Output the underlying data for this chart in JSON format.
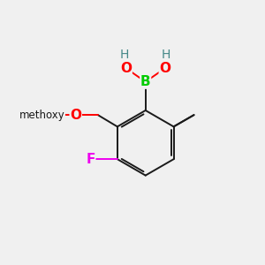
{
  "bg_color": "#f0f0f0",
  "bond_color": "#1a1a1a",
  "bond_width": 1.4,
  "atom_colors": {
    "B": "#00cc00",
    "O": "#ff0000",
    "F": "#ee00ee",
    "H": "#448888",
    "C": "#1a1a1a"
  },
  "font_size_atom": 11,
  "font_size_H": 10,
  "font_size_label": 9.5
}
